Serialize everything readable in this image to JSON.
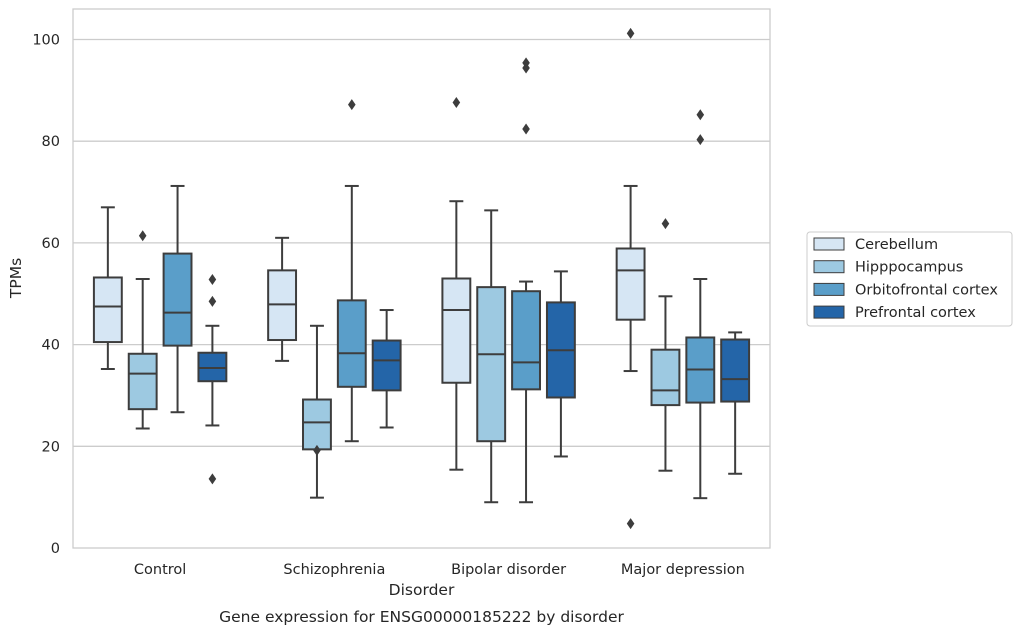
{
  "chart_data": {
    "type": "box",
    "xlabel": "Disorder",
    "ylabel": "TPMs",
    "caption": "Gene expression for ENSG00000185222 by disorder",
    "ylim": [
      0,
      106
    ],
    "yticks": [
      0,
      20,
      40,
      60,
      80,
      100
    ],
    "grid": true,
    "legend_position": "right",
    "categories": [
      "Control",
      "Schizophrenia",
      "Bipolar disorder",
      "Major depression"
    ],
    "series": [
      {
        "name": "Cerebellum",
        "color": "#d6e6f4",
        "boxes": [
          {
            "whisker_low": 35.2,
            "q1": 40.5,
            "median": 47.5,
            "q3": 53.2,
            "whisker_high": 67.0,
            "outliers": []
          },
          {
            "whisker_low": 36.8,
            "q1": 40.9,
            "median": 47.9,
            "q3": 54.6,
            "whisker_high": 61.0,
            "outliers": []
          },
          {
            "whisker_low": 15.4,
            "q1": 32.5,
            "median": 46.8,
            "q3": 53.0,
            "whisker_high": 68.2,
            "outliers": [
              87.6
            ]
          },
          {
            "whisker_low": 34.8,
            "q1": 44.9,
            "median": 54.6,
            "q3": 58.9,
            "whisker_high": 71.2,
            "outliers": [
              101.2,
              4.8
            ]
          }
        ]
      },
      {
        "name": "Hipppocampus",
        "color": "#9dc9e1",
        "boxes": [
          {
            "whisker_low": 23.5,
            "q1": 27.3,
            "median": 34.3,
            "q3": 38.2,
            "whisker_high": 52.9,
            "outliers": [
              61.4
            ]
          },
          {
            "whisker_low": 9.9,
            "q1": 19.4,
            "median": 24.7,
            "q3": 29.2,
            "whisker_high": 43.7,
            "outliers": [
              19.2
            ]
          },
          {
            "whisker_low": 9.0,
            "q1": 21.0,
            "median": 38.1,
            "q3": 51.3,
            "whisker_high": 66.4,
            "outliers": []
          },
          {
            "whisker_low": 15.2,
            "q1": 28.1,
            "median": 31.0,
            "q3": 39.0,
            "whisker_high": 49.5,
            "outliers": [
              63.8
            ]
          }
        ]
      },
      {
        "name": "Orbitofrontal cortex",
        "color": "#5a9ec9",
        "boxes": [
          {
            "whisker_low": 26.7,
            "q1": 39.8,
            "median": 46.3,
            "q3": 57.9,
            "whisker_high": 71.2,
            "outliers": []
          },
          {
            "whisker_low": 21.0,
            "q1": 31.7,
            "median": 38.3,
            "q3": 48.7,
            "whisker_high": 71.2,
            "outliers": [
              87.2
            ]
          },
          {
            "whisker_low": 9.0,
            "q1": 31.2,
            "median": 36.5,
            "q3": 50.5,
            "whisker_high": 52.4,
            "outliers": [
              95.4,
              94.4,
              82.4
            ]
          },
          {
            "whisker_low": 9.8,
            "q1": 28.6,
            "median": 35.1,
            "q3": 41.4,
            "whisker_high": 52.9,
            "outliers": [
              85.2,
              80.3
            ]
          }
        ]
      },
      {
        "name": "Prefrontal cortex",
        "color": "#2465a8",
        "boxes": [
          {
            "whisker_low": 24.1,
            "q1": 32.8,
            "median": 35.4,
            "q3": 38.4,
            "whisker_high": 43.7,
            "outliers": [
              52.8,
              48.5,
              13.6
            ]
          },
          {
            "whisker_low": 23.7,
            "q1": 31.0,
            "median": 36.9,
            "q3": 40.8,
            "whisker_high": 46.8,
            "outliers": []
          },
          {
            "whisker_low": 18.0,
            "q1": 29.6,
            "median": 38.9,
            "q3": 48.3,
            "whisker_high": 54.4,
            "outliers": []
          },
          {
            "whisker_low": 14.6,
            "q1": 28.8,
            "median": 33.2,
            "q3": 41.0,
            "whisker_high": 42.4,
            "outliers": []
          }
        ]
      }
    ]
  }
}
